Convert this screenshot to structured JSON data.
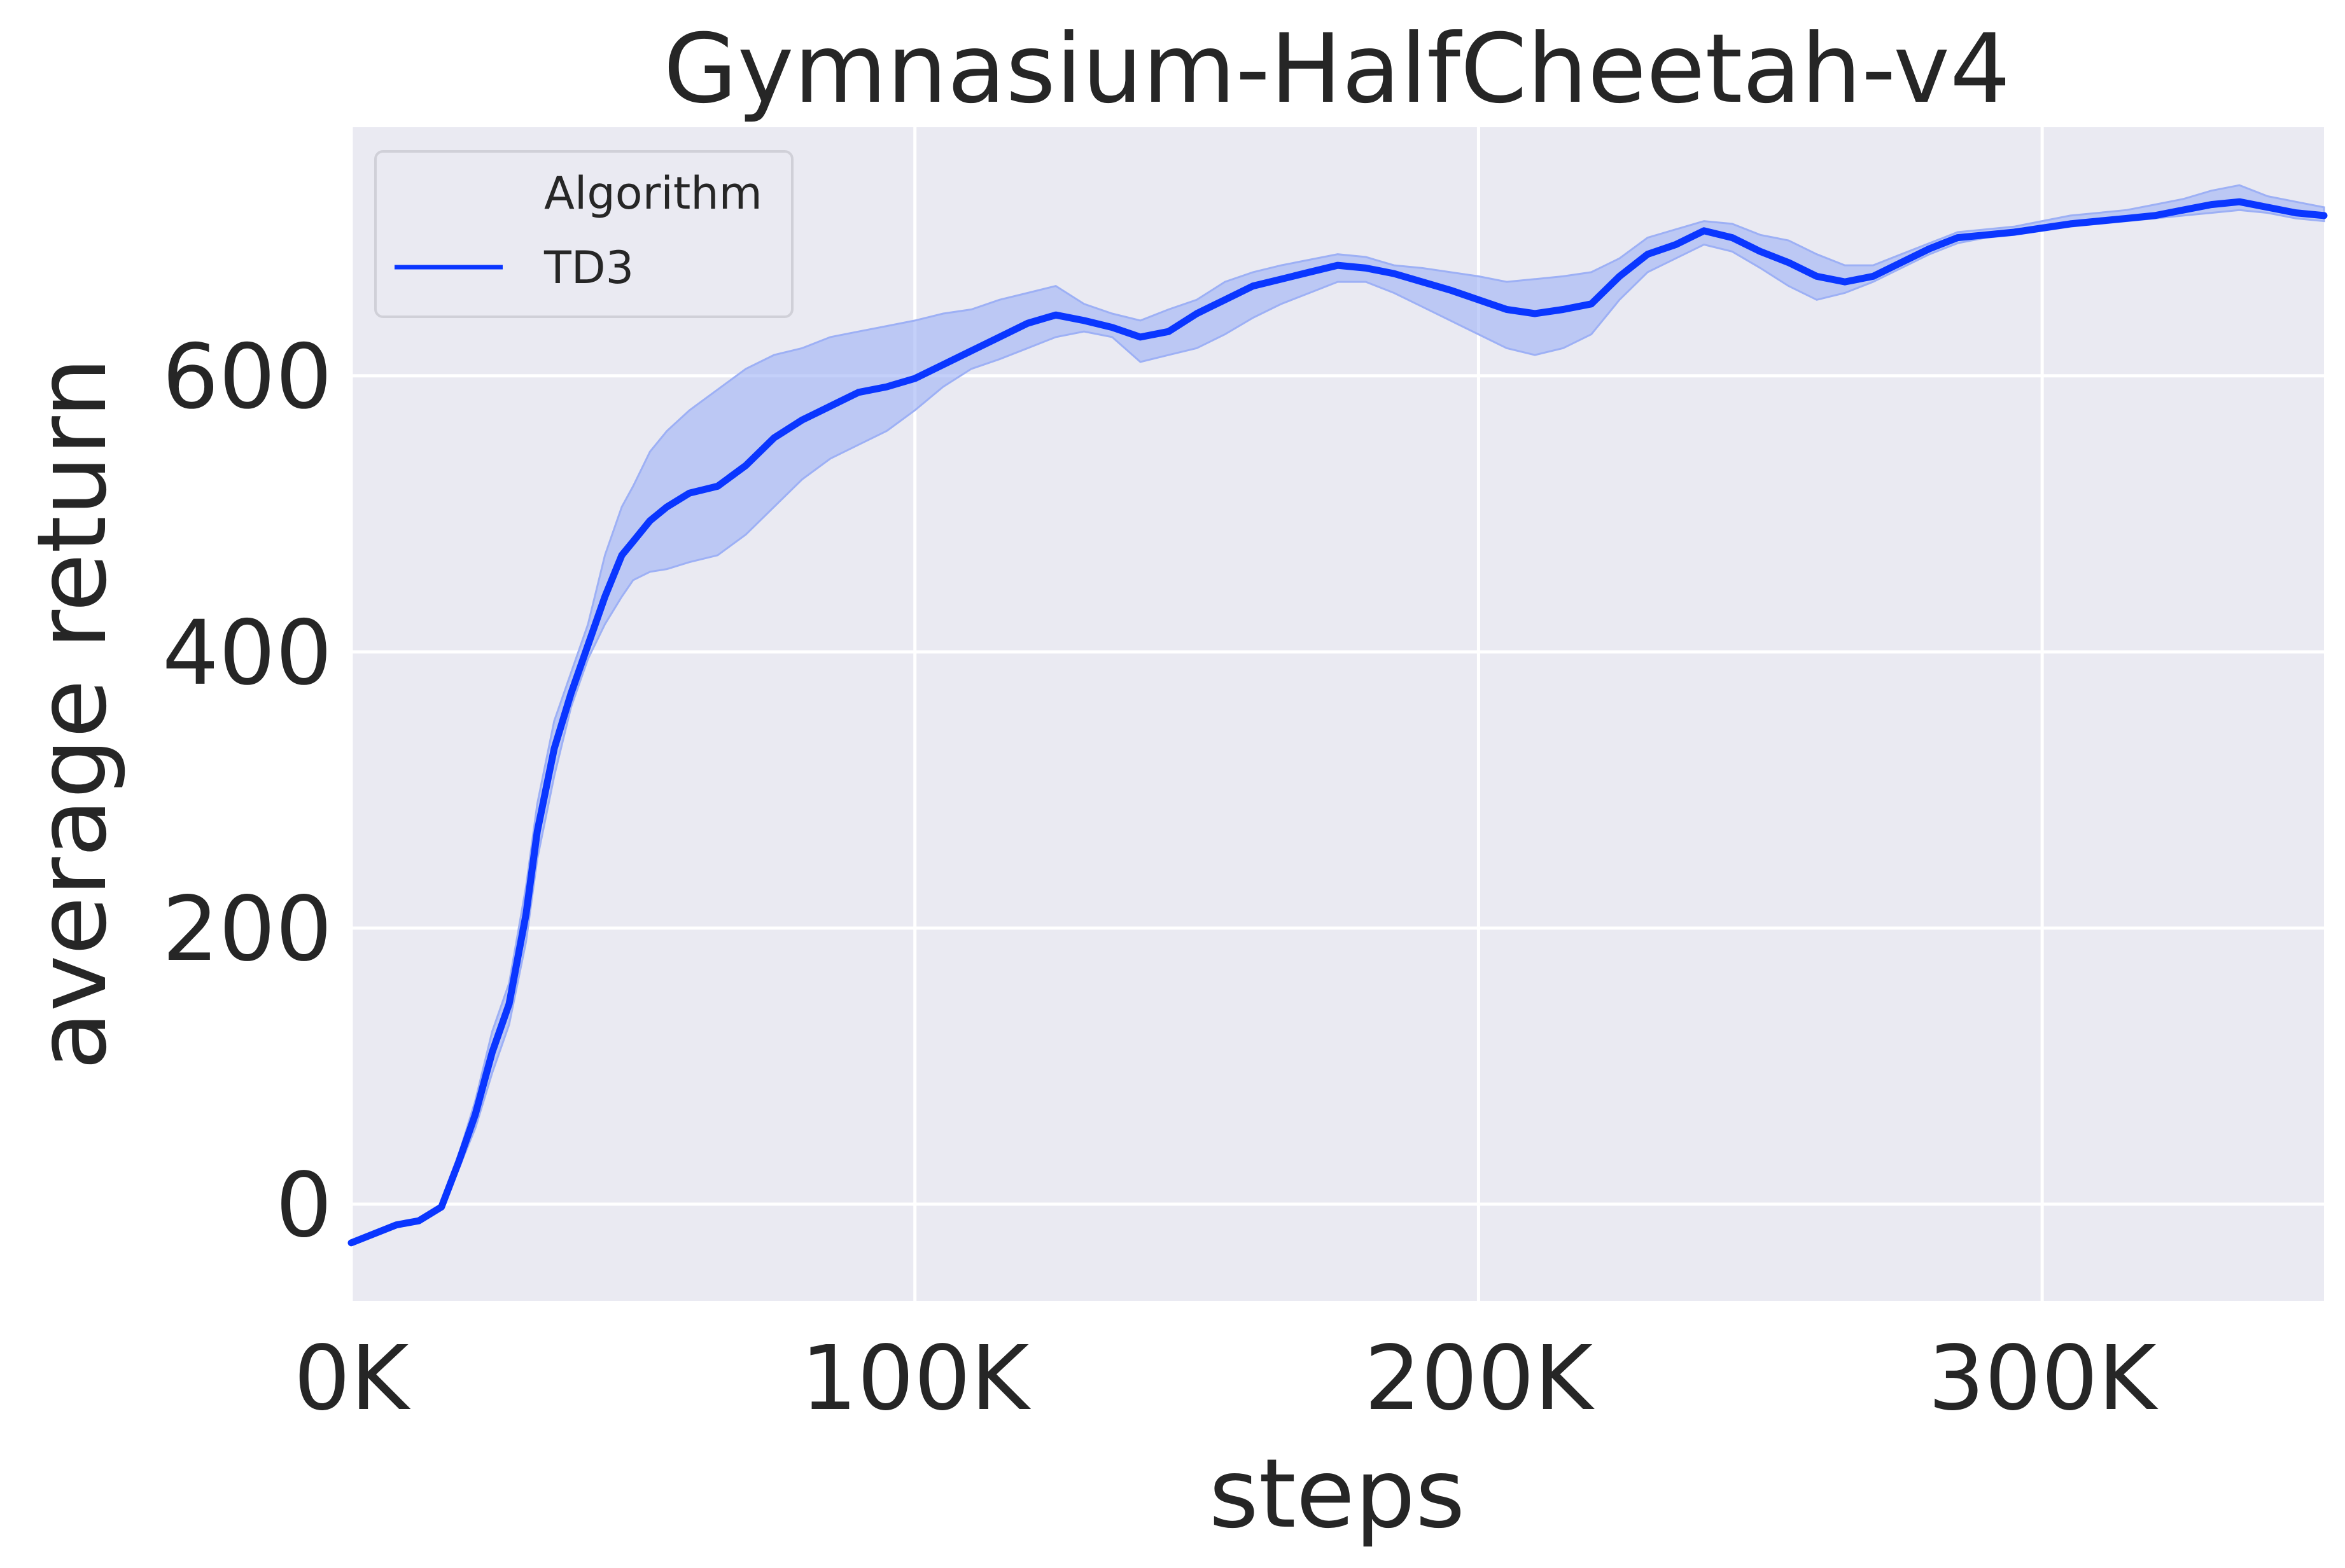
{
  "chart_data": {
    "type": "line",
    "title": "Gymnasium-HalfCheetah-v4",
    "xlabel": "steps",
    "ylabel": "average return",
    "xlim": [
      0,
      350000
    ],
    "ylim": [
      -70,
      780
    ],
    "x_ticks": [
      0,
      100000,
      200000,
      300000
    ],
    "x_tick_labels": [
      "0K",
      "100K",
      "200K",
      "300K"
    ],
    "y_ticks": [
      0,
      200,
      400,
      600
    ],
    "y_tick_labels": [
      "0",
      "200",
      "400",
      "600"
    ],
    "grid": true,
    "legend": {
      "title": "Algorithm",
      "placement": "top-left"
    },
    "colors": {
      "background": "#eaeaf2",
      "grid": "#ffffff",
      "line": "#0a36ff",
      "band": "#9db0f5"
    },
    "series": [
      {
        "name": "TD3",
        "x": [
          0,
          8000,
          12000,
          16000,
          19000,
          22000,
          25000,
          28000,
          31000,
          33000,
          36000,
          39000,
          42000,
          45000,
          48000,
          50000,
          53000,
          56000,
          60000,
          65000,
          70000,
          75000,
          80000,
          85000,
          90000,
          95000,
          100000,
          105000,
          110000,
          115000,
          120000,
          125000,
          130000,
          135000,
          140000,
          145000,
          150000,
          155000,
          160000,
          165000,
          170000,
          175000,
          180000,
          185000,
          190000,
          195000,
          200000,
          205000,
          210000,
          215000,
          220000,
          225000,
          230000,
          235000,
          240000,
          245000,
          250000,
          255000,
          260000,
          265000,
          270000,
          275000,
          280000,
          285000,
          290000,
          295000,
          300000,
          305000,
          310000,
          315000,
          320000,
          325000,
          330000,
          335000,
          340000,
          345000,
          350000
        ],
        "y": [
          -28,
          -15,
          -12,
          -2,
          30,
          65,
          110,
          145,
          210,
          270,
          330,
          370,
          405,
          440,
          470,
          480,
          495,
          505,
          515,
          520,
          535,
          555,
          568,
          578,
          588,
          592,
          598,
          608,
          618,
          628,
          638,
          644,
          640,
          635,
          628,
          632,
          645,
          655,
          665,
          670,
          675,
          680,
          678,
          674,
          668,
          662,
          655,
          648,
          645,
          648,
          652,
          672,
          688,
          695,
          705,
          700,
          690,
          682,
          672,
          668,
          672,
          682,
          692,
          700,
          702,
          704,
          707,
          710,
          712,
          714,
          716,
          720,
          724,
          726,
          722,
          718,
          716
        ],
        "lower": [
          -28,
          -15,
          -12,
          -2,
          25,
          55,
          95,
          130,
          190,
          250,
          310,
          360,
          395,
          420,
          440,
          452,
          458,
          460,
          465,
          470,
          485,
          505,
          525,
          540,
          550,
          560,
          575,
          592,
          605,
          612,
          620,
          628,
          632,
          628,
          610,
          615,
          620,
          630,
          642,
          652,
          660,
          668,
          668,
          660,
          650,
          640,
          630,
          620,
          615,
          620,
          630,
          655,
          675,
          685,
          695,
          690,
          678,
          665,
          655,
          660,
          668,
          678,
          688,
          696,
          700,
          702,
          705,
          708,
          710,
          712,
          714,
          716,
          718,
          720,
          718,
          714,
          712
        ],
        "upper": [
          -28,
          -15,
          -12,
          -2,
          35,
          75,
          125,
          160,
          230,
          290,
          350,
          385,
          420,
          470,
          505,
          520,
          545,
          560,
          575,
          590,
          605,
          615,
          620,
          628,
          632,
          636,
          640,
          645,
          648,
          655,
          660,
          665,
          652,
          645,
          640,
          648,
          655,
          668,
          675,
          680,
          684,
          688,
          686,
          680,
          678,
          675,
          672,
          668,
          670,
          672,
          675,
          685,
          700,
          706,
          712,
          710,
          702,
          698,
          688,
          680,
          680,
          688,
          696,
          704,
          706,
          708,
          712,
          716,
          718,
          720,
          724,
          728,
          734,
          738,
          730,
          726,
          722
        ]
      }
    ]
  }
}
